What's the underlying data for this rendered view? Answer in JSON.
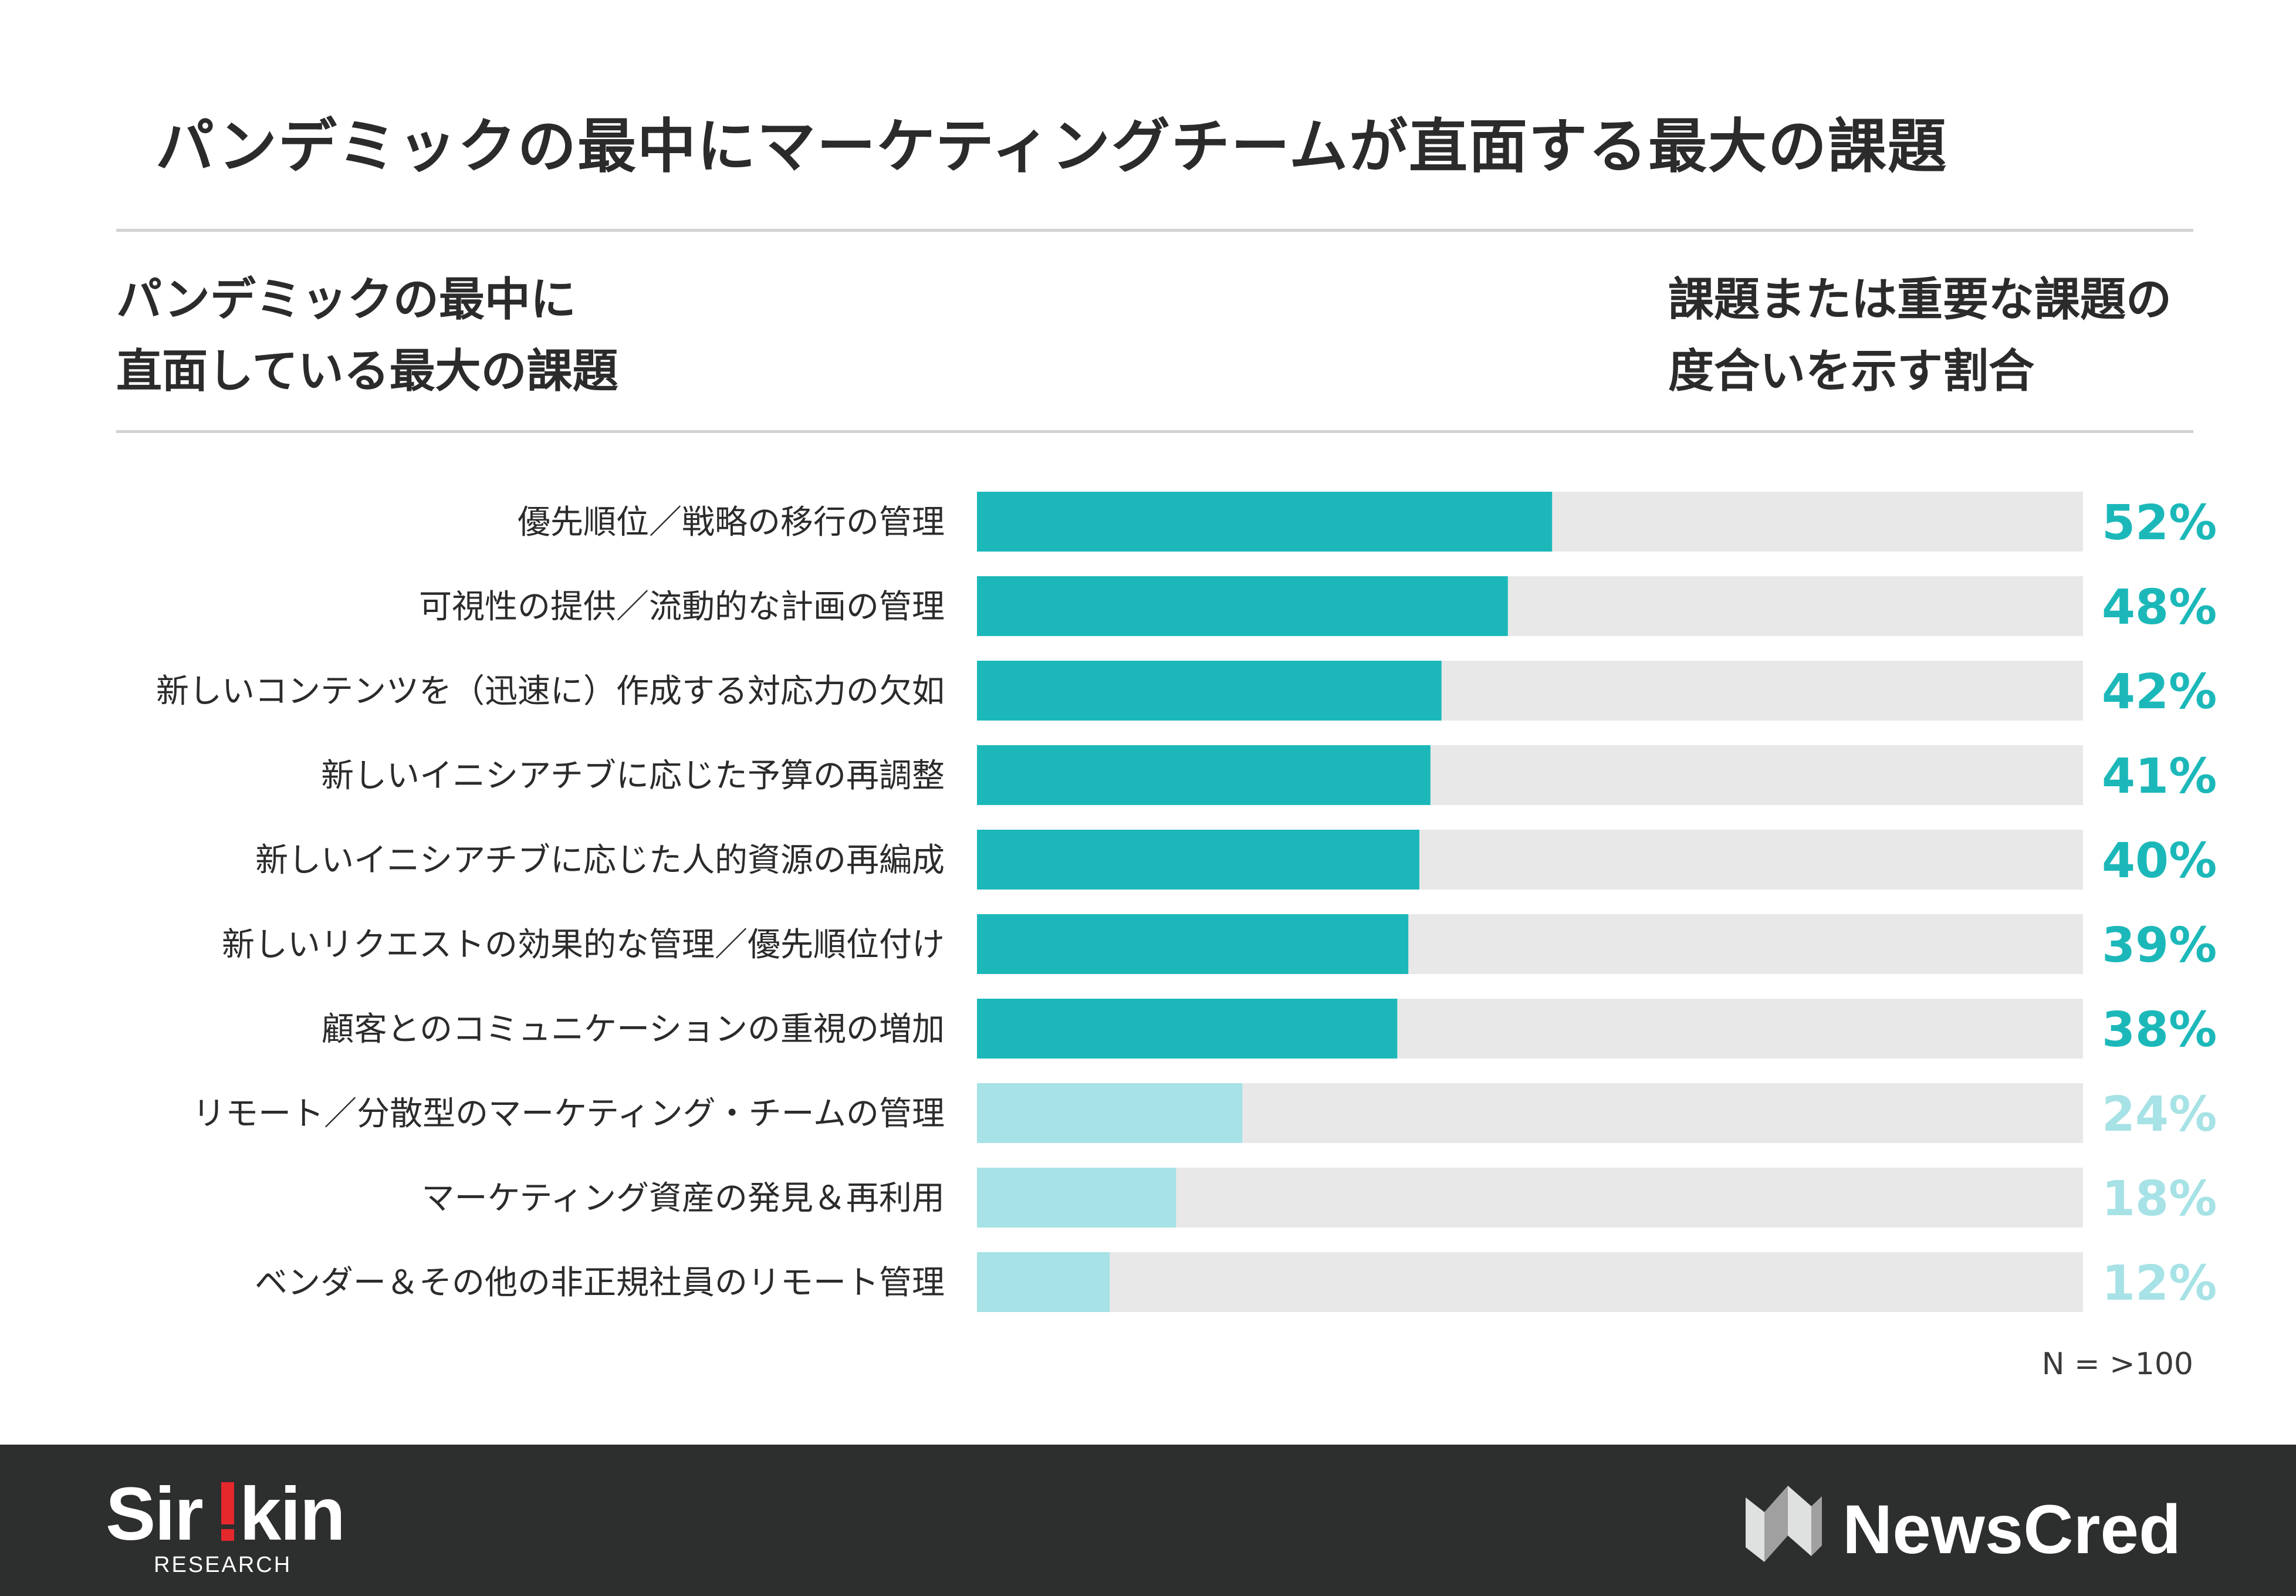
{
  "title": "パンデミックの最中にマーケティングチームが直面する最大の課題",
  "subheading_left": [
    "パンデミックの最中に",
    "直面している最大の課題"
  ],
  "subheading_right": [
    "課題または重要な課題の",
    "度合いを示す割合"
  ],
  "sample_note": "N = >100",
  "colors": {
    "bar_dark": "#1cb8b9",
    "bar_light": "#a6e2e6",
    "track": "#e8e8e8",
    "footer_bg": "#2d2e2e",
    "brand_red": "#e4282c"
  },
  "brands": {
    "sirkin": {
      "wordmark": "Sir!kin",
      "tagline": "RESEARCH"
    },
    "newscred": {
      "wordmark": "NewsCred",
      "icon": "newscred-n-icon"
    }
  },
  "chart_data": {
    "type": "bar",
    "orientation": "horizontal",
    "categories": [
      "優先順位／戦略の移行の管理",
      "可視性の提供／流動的な計画の管理",
      "新しいコンテンツを（迅速に）作成する対応力の欠如",
      "新しいイニシアチブに応じた予算の再調整",
      "新しいイニシアチブに応じた人的資源の再編成",
      "新しいリクエストの効果的な管理／優先順位付け",
      "顧客とのコミュニケーションの重視の増加",
      "リモート／分散型のマーケティング・チームの管理",
      "マーケティング資産の発見＆再利用",
      "ベンダー＆その他の非正規社員のリモート管理"
    ],
    "values": [
      52,
      48,
      42,
      41,
      40,
      39,
      38,
      24,
      18,
      12
    ],
    "value_labels": [
      "52%",
      "48%",
      "42%",
      "41%",
      "40%",
      "39%",
      "38%",
      "24%",
      "18%",
      "12%"
    ],
    "highlighted": [
      true,
      true,
      true,
      true,
      true,
      true,
      true,
      false,
      false,
      false
    ],
    "xlim": [
      0,
      100
    ],
    "unit": "%",
    "grid": false,
    "legend": "none"
  }
}
